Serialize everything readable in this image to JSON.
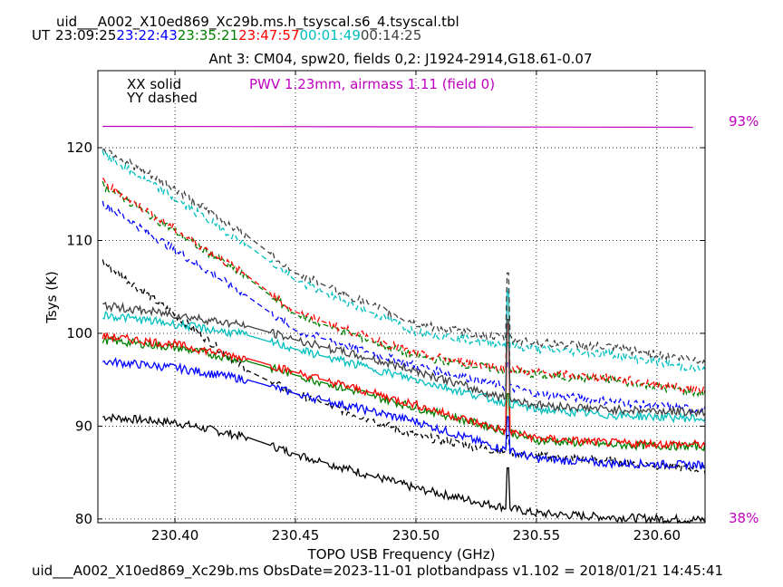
{
  "header": {
    "file_title": "uid___A002_X10ed869_Xc29b.ms.h_tsyscal.s6_4.tsyscal.tbl",
    "ut_label": "UT",
    "ut_times": [
      {
        "time": "23:09:25",
        "color": "#000000"
      },
      {
        "time": "23:22:43",
        "color": "#0000ff"
      },
      {
        "time": "23:35:21",
        "color": "#008000"
      },
      {
        "time": "23:47:57",
        "color": "#ff0000"
      },
      {
        "time": "00:01:49",
        "color": "#00bfbf"
      },
      {
        "time": "00:14:25",
        "color": "#404040"
      }
    ]
  },
  "footer": {
    "text": "uid___A002_X10ed869_Xc29b.ms  ObsDate=2023-11-01   plotbandpass v1.102 = 2018/01/21 14:45:41"
  },
  "colors": {
    "pwv": "#c000c0",
    "series": [
      "#000000",
      "#0000ff",
      "#008000",
      "#ff0000",
      "#00bfbf",
      "#404040"
    ]
  },
  "chart_data": {
    "type": "line",
    "title": "Ant 3: CM04,  spw20,  fields 0,2: J1924-2914,G18.61-0.07",
    "xlabel": "TOPO USB Frequency (GHz)",
    "ylabel": "Tsys (K)",
    "xlim": [
      230.368,
      230.62
    ],
    "ylim": [
      79.6,
      128.3
    ],
    "xticks": [
      "230.40",
      "230.45",
      "230.50",
      "230.55",
      "230.60"
    ],
    "yticks": [
      "80",
      "90",
      "100",
      "110",
      "120"
    ],
    "grid": true,
    "legend_lines": [
      "XX solid",
      "YY dashed"
    ],
    "pwv_label": "PWV 1.23mm, airmass 1.11 (field 0)",
    "right_axis_labels": {
      "top": "93%",
      "bottom": "38%"
    },
    "transmission": {
      "x": [
        230.37,
        230.615
      ],
      "y": [
        122.3,
        122.2
      ]
    },
    "spike_freq": 230.538,
    "gap_regions": [
      [
        230.43,
        230.44
      ],
      [
        230.448,
        230.452
      ],
      [
        230.46,
        230.464
      ],
      [
        230.48,
        230.482
      ],
      [
        230.505,
        230.506
      ]
    ],
    "series": [
      {
        "time": "23:09:25",
        "pol": "XX",
        "color": "#000000",
        "x": [
          230.37,
          230.4,
          230.43,
          230.45,
          230.5,
          230.53,
          230.55,
          230.58,
          230.62
        ],
        "y": [
          91.0,
          90.4,
          88.8,
          87.0,
          83.3,
          81.6,
          80.6,
          80.2,
          79.9
        ],
        "spike": 85.5
      },
      {
        "time": "23:09:25",
        "pol": "YY",
        "color": "#000000",
        "x": [
          230.37,
          230.4,
          230.43,
          230.45,
          230.5,
          230.53,
          230.55,
          230.58,
          230.62
        ],
        "y": [
          107.7,
          102.0,
          96.0,
          93.5,
          89.0,
          87.5,
          86.8,
          86.3,
          85.3
        ],
        "spike": 89.0
      },
      {
        "time": "23:22:43",
        "pol": "XX",
        "color": "#0000ff",
        "x": [
          230.37,
          230.4,
          230.43,
          230.45,
          230.5,
          230.53,
          230.55,
          230.58,
          230.62
        ],
        "y": [
          97.0,
          96.3,
          95.0,
          93.5,
          90.5,
          88.0,
          86.5,
          86.0,
          85.8
        ],
        "spike": 91.0
      },
      {
        "time": "23:22:43",
        "pol": "YY",
        "color": "#0000ff",
        "x": [
          230.37,
          230.4,
          230.43,
          230.45,
          230.5,
          230.53,
          230.55,
          230.58,
          230.62
        ],
        "y": [
          114.0,
          109.0,
          104.0,
          100.3,
          96.5,
          94.7,
          93.5,
          92.7,
          91.7
        ],
        "spike": 97.0
      },
      {
        "time": "23:35:21",
        "pol": "XX",
        "color": "#008000",
        "x": [
          230.37,
          230.4,
          230.43,
          230.45,
          230.5,
          230.53,
          230.55,
          230.58,
          230.62
        ],
        "y": [
          99.3,
          98.5,
          97.0,
          95.5,
          92.0,
          90.0,
          88.5,
          88.0,
          87.8
        ],
        "spike": 93.5
      },
      {
        "time": "23:35:21",
        "pol": "YY",
        "color": "#008000",
        "x": [
          230.37,
          230.4,
          230.43,
          230.45,
          230.5,
          230.53,
          230.55,
          230.58,
          230.62
        ],
        "y": [
          116.0,
          111.0,
          106.0,
          102.0,
          97.5,
          96.3,
          95.5,
          95.0,
          93.5
        ],
        "spike": 99.0
      },
      {
        "time": "23:47:57",
        "pol": "XX",
        "color": "#ff0000",
        "x": [
          230.37,
          230.4,
          230.43,
          230.45,
          230.5,
          230.53,
          230.55,
          230.58,
          230.62
        ],
        "y": [
          99.7,
          98.8,
          97.3,
          95.8,
          92.3,
          90.0,
          88.7,
          88.2,
          88.0
        ],
        "spike": 101.0
      },
      {
        "time": "23:47:57",
        "pol": "YY",
        "color": "#ff0000",
        "x": [
          230.37,
          230.4,
          230.43,
          230.45,
          230.5,
          230.53,
          230.55,
          230.58,
          230.62
        ],
        "y": [
          116.3,
          111.2,
          106.2,
          102.3,
          97.8,
          96.5,
          95.8,
          95.2,
          93.8
        ],
        "spike": 103.0
      },
      {
        "time": "00:01:49",
        "pol": "XX",
        "color": "#00bfbf",
        "x": [
          230.37,
          230.4,
          230.43,
          230.45,
          230.5,
          230.53,
          230.55,
          230.58,
          230.62
        ],
        "y": [
          102.0,
          101.0,
          99.8,
          98.3,
          95.0,
          93.0,
          91.8,
          91.2,
          90.8
        ],
        "spike": 104.5
      },
      {
        "time": "00:01:49",
        "pol": "YY",
        "color": "#00bfbf",
        "x": [
          230.37,
          230.4,
          230.43,
          230.45,
          230.5,
          230.53,
          230.55,
          230.58,
          230.62
        ],
        "y": [
          119.3,
          114.5,
          109.5,
          105.7,
          100.2,
          99.0,
          98.3,
          97.8,
          96.0
        ],
        "spike": 105.0
      },
      {
        "time": "00:14:25",
        "pol": "XX",
        "color": "#404040",
        "x": [
          230.37,
          230.4,
          230.43,
          230.45,
          230.5,
          230.53,
          230.55,
          230.58,
          230.62
        ],
        "y": [
          103.0,
          102.0,
          100.8,
          99.3,
          96.0,
          93.5,
          92.3,
          91.8,
          91.5
        ],
        "spike": 101.5
      },
      {
        "time": "00:14:25",
        "pol": "YY",
        "color": "#404040",
        "x": [
          230.37,
          230.4,
          230.43,
          230.45,
          230.5,
          230.53,
          230.55,
          230.58,
          230.62
        ],
        "y": [
          120.0,
          115.5,
          110.5,
          106.5,
          101.0,
          99.7,
          99.0,
          98.5,
          97.0
        ],
        "spike": 106.5
      }
    ]
  }
}
